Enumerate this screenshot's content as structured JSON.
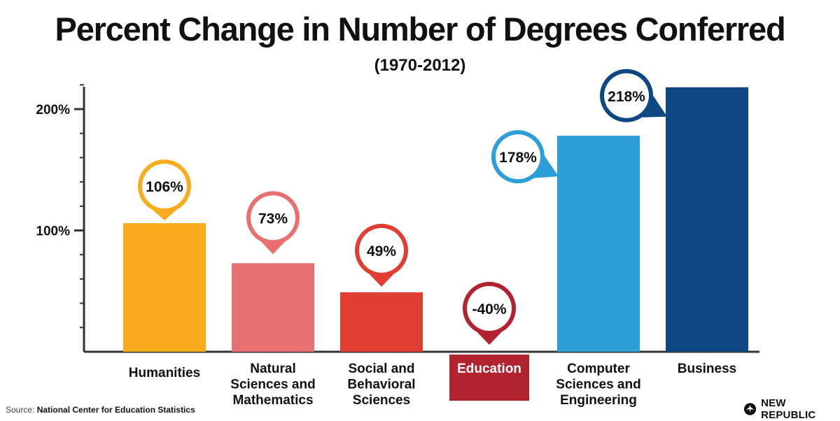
{
  "title": "Percent Change in Number of Degrees Conferred",
  "subtitle": "(1970-2012)",
  "source_prefix": "Source:",
  "source_name": "National Center for Education Statistics",
  "logo_text": "NEW REPUBLIC",
  "chart_data": {
    "type": "bar",
    "categories": [
      "Humanities",
      "Natural Sciences and Mathematics",
      "Social and Behavioral Sciences",
      "Education",
      "Computer Sciences and Engineering",
      "Business"
    ],
    "category_lines": [
      [
        "Humanities"
      ],
      [
        "Natural",
        "Sciences and",
        "Mathematics"
      ],
      [
        "Social and",
        "Behavioral",
        "Sciences"
      ],
      [
        "Education"
      ],
      [
        "Computer",
        "Sciences and",
        "Engineering"
      ],
      [
        "Business"
      ]
    ],
    "values": [
      106,
      73,
      49,
      -40,
      178,
      218
    ],
    "data_labels": [
      "106%",
      "73%",
      "49%",
      "-40%",
      "178%",
      "218%"
    ],
    "colors": [
      "#f9ac1e",
      "#e87070",
      "#e13e33",
      "#b0232f",
      "#2d9fd8",
      "#0d4784"
    ],
    "y_tick_labels": [
      {
        "value": 100,
        "label": "100%"
      },
      {
        "value": 200,
        "label": "200%"
      }
    ],
    "y_minor_step": 20,
    "ylim": [
      0,
      220
    ],
    "highlighted_category": "Education",
    "xlabel": "",
    "ylabel": "",
    "grid": false,
    "legend": "none"
  }
}
